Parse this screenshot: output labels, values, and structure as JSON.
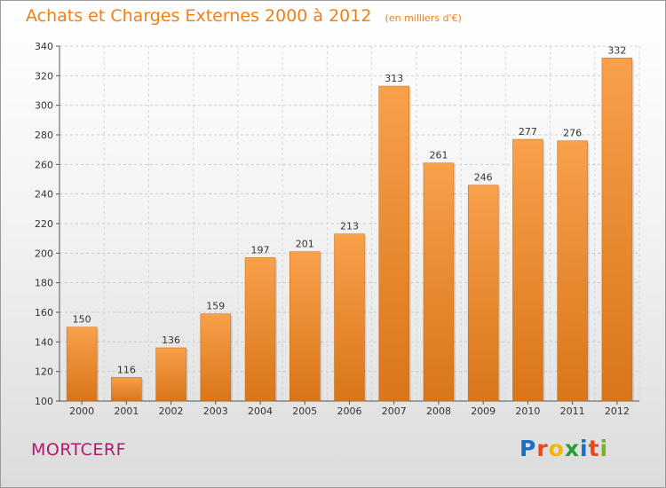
{
  "chart_data": {
    "type": "bar",
    "title": "Achats et Charges Externes 2000 à 2012",
    "subtitle": "(en milliers d'€)",
    "categories": [
      "2000",
      "2001",
      "2002",
      "2003",
      "2004",
      "2005",
      "2006",
      "2007",
      "2008",
      "2009",
      "2010",
      "2011",
      "2012"
    ],
    "values": [
      150,
      116,
      136,
      159,
      197,
      201,
      213,
      313,
      261,
      246,
      277,
      276,
      332
    ],
    "ylim": [
      100,
      340
    ],
    "yticks": [
      100,
      120,
      140,
      160,
      180,
      200,
      220,
      240,
      260,
      280,
      300,
      320,
      340
    ],
    "grid": true,
    "bar_color": "#f08a2a",
    "bar_color_dark": "#d4700f"
  },
  "commune": "MORTCERF",
  "logo": {
    "text": "Proxiti",
    "letters": [
      {
        "c": "P",
        "color": "#1a6fc4"
      },
      {
        "c": "r",
        "color": "#e84a1b"
      },
      {
        "c": "o",
        "color": "#f7b500"
      },
      {
        "c": "x",
        "color": "#2a9d3a"
      },
      {
        "c": "i",
        "color": "#1a6fc4"
      },
      {
        "c": "t",
        "color": "#e84a1b"
      },
      {
        "c": "i",
        "color": "#7ab51d"
      }
    ]
  }
}
